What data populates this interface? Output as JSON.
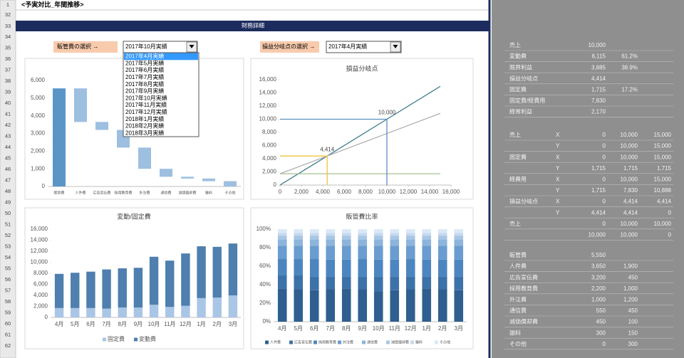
{
  "sheet": {
    "row_headers": [
      1,
      32,
      33,
      34,
      35,
      36,
      37,
      38,
      39,
      40,
      41,
      42,
      43,
      44,
      45,
      46,
      47,
      48,
      49,
      50,
      51,
      52,
      53,
      54,
      55,
      56,
      57,
      58,
      59,
      60,
      61,
      62
    ],
    "title_cell": "<予実対比_年間推移>",
    "banner": "財務詳細"
  },
  "controls": [
    {
      "label": "販管費の選択 →",
      "selected": "2017年10月実績",
      "options": [
        "2017年4月実績",
        "2017年5月実績",
        "2017年6月実績",
        "2017年7月実績",
        "2017年8月実績",
        "2017年9月実績",
        "2017年10月実績",
        "2017年11月実績",
        "2017年12月実績",
        "2018年1月実績",
        "2018年2月実績",
        "2018年3月実績"
      ]
    },
    {
      "label": "損益分岐点の選択 →",
      "selected": "2017年4月実績"
    }
  ],
  "side_table": {
    "blocks": [
      [
        [
          "売上",
          null,
          "10,000",
          null,
          null
        ],
        [
          "変動費",
          null,
          "6,115",
          "61.2%",
          null
        ],
        [
          "限界利益",
          null,
          "3,885",
          "38.9%",
          null
        ],
        [
          "損益分岐点",
          null,
          "4,414",
          null,
          null
        ],
        [
          "固定費",
          null,
          "1,715",
          "17.2%",
          null
        ],
        [
          "固定費/経費用",
          null,
          "7,830",
          null,
          null
        ],
        [
          "経常利益",
          null,
          "2,170",
          null,
          null
        ]
      ],
      [
        [
          "売上",
          "X",
          "0",
          "10,000",
          "15,000"
        ],
        [
          null,
          "Y",
          "0",
          "10,000",
          "15,000"
        ],
        [
          "固定費",
          "X",
          "0",
          "10,000",
          "15,000"
        ],
        [
          null,
          "Y",
          "1,715",
          "1,715",
          "1,715"
        ],
        [
          "経費用",
          "X",
          "0",
          "10,000",
          "15,000"
        ],
        [
          null,
          "Y",
          "1,715",
          "7,830",
          "10,888"
        ],
        [
          "損益分岐点",
          "X",
          "0",
          "4,414",
          "4,414"
        ],
        [
          null,
          "Y",
          "4,414",
          "4,414",
          "0"
        ],
        [
          "売上",
          null,
          "0",
          "10,000",
          "10,000"
        ],
        [
          null,
          null,
          "10,000",
          "10,000",
          "0"
        ]
      ],
      [
        [
          "販管費",
          null,
          "5,550",
          null,
          null
        ],
        [
          "人件費",
          null,
          "3,650",
          "1,900",
          null
        ],
        [
          "広告宣伝費",
          null,
          "3,200",
          "450",
          null
        ],
        [
          "採用教育費",
          null,
          "2,200",
          "1,000",
          null
        ],
        [
          "外注費",
          null,
          "1,000",
          "1,200",
          null
        ],
        [
          "通信費",
          null,
          "550",
          "450",
          null
        ],
        [
          "減価償却費",
          null,
          "450",
          "100",
          null
        ],
        [
          "雑料",
          null,
          "300",
          "150",
          null
        ],
        [
          "その他",
          null,
          "0",
          "300",
          null
        ]
      ]
    ]
  },
  "chart_data": [
    {
      "type": "waterfall",
      "categories": [
        "販管費",
        "人件費",
        "広告宣伝費",
        "採用教育費",
        "外注費",
        "通信費",
        "減価償却費",
        "雑料",
        "その他"
      ],
      "values": [
        5550,
        1900,
        450,
        1000,
        1200,
        450,
        100,
        150,
        300
      ],
      "total_color": "#5b95c8",
      "color": "#9dbfe0",
      "ylim": [
        0,
        6000
      ],
      "yticks": [
        0,
        {
          "value": 1000,
          "label": "1,000"
        },
        {
          "value": 2000,
          "label": "2,000"
        },
        {
          "value": 3000,
          "label": "3,000"
        },
        {
          "value": 4000,
          "label": "4,000"
        },
        {
          "value": 5000,
          "label": "5,000"
        },
        {
          "value": 6000,
          "label": "6,000"
        }
      ],
      "grid": false
    },
    {
      "type": "line",
      "title": "損益分岐点",
      "xlim": [
        0,
        16000
      ],
      "xticks": [
        0,
        {
          "value": 2000,
          "label": "2,000"
        },
        {
          "value": 4000,
          "label": "4,000"
        },
        {
          "value": 6000,
          "label": "6,000"
        },
        {
          "value": 8000,
          "label": "8,000"
        },
        {
          "value": 10000,
          "label": "10,000"
        },
        {
          "value": 12000,
          "label": "12,000"
        },
        {
          "value": 14000,
          "label": "14,000"
        },
        {
          "value": 16000,
          "label": "16,000"
        }
      ],
      "ylim": [
        0,
        16000
      ],
      "yticks": [
        0,
        {
          "value": 2000,
          "label": "2,000"
        },
        {
          "value": 4000,
          "label": "4,000"
        },
        {
          "value": 6000,
          "label": "6,000"
        },
        {
          "value": 8000,
          "label": "8,000"
        },
        {
          "value": 10000,
          "label": "10,000"
        },
        {
          "value": 12000,
          "label": "12,000"
        },
        {
          "value": 14000,
          "label": "14,000"
        },
        {
          "value": 16000,
          "label": "16,000"
        }
      ],
      "grid": false,
      "series": [
        {
          "color": "#3d7a8c",
          "x": [
            0,
            10000,
            15000
          ],
          "values": [
            0,
            10000,
            15000
          ]
        },
        {
          "color": "#a5c090",
          "x": [
            0,
            10000,
            15000
          ],
          "values": [
            1715,
            1715,
            1715
          ]
        },
        {
          "color": "#b0b0b0",
          "x": [
            0,
            10000,
            15000
          ],
          "values": [
            1715,
            7830,
            10888
          ]
        },
        {
          "color": "#f0c43c",
          "x": [
            0,
            4414,
            4414
          ],
          "values": [
            4414,
            4414,
            0
          ],
          "value_labels": [
            null,
            "4,414",
            null
          ]
        },
        {
          "color": "#5a8fbf",
          "x": [
            0,
            10000,
            10000
          ],
          "values": [
            10000,
            10000,
            0
          ],
          "value_labels": [
            null,
            "10,000",
            null
          ]
        }
      ]
    },
    {
      "type": "stacked_bar",
      "title": "変動/固定費",
      "categories": [
        "4月",
        "5月",
        "6月",
        "7月",
        "8月",
        "9月",
        "10月",
        "11月",
        "12月",
        "1月",
        "2月",
        "3月"
      ],
      "ylim": [
        0,
        16000
      ],
      "yticks": [
        0,
        {
          "value": 2000,
          "label": "2,000"
        },
        {
          "value": 4000,
          "label": "4,000"
        },
        {
          "value": 6000,
          "label": "6,000"
        },
        {
          "value": 8000,
          "label": "8,000"
        },
        {
          "value": 10000,
          "label": "10,000"
        },
        {
          "value": 12000,
          "label": "12,000"
        },
        {
          "value": 14000,
          "label": "14,000"
        },
        {
          "value": 16000,
          "label": "16,000"
        }
      ],
      "grid": false,
      "series": [
        {
          "name": "固定費",
          "color": "#a9c6e6",
          "values": [
            1700,
            1700,
            1700,
            1600,
            1800,
            1800,
            2300,
            1900,
            2100,
            3500,
            3600,
            4000
          ]
        },
        {
          "name": "変動費",
          "color": "#4f7fae",
          "values": [
            6200,
            6400,
            6600,
            7100,
            7100,
            7200,
            8700,
            8400,
            9500,
            9400,
            9200,
            9400
          ]
        }
      ]
    },
    {
      "type": "stacked_bar",
      "title": "販管費比率",
      "categories": [
        "4月",
        "5月",
        "6月",
        "7月",
        "8月",
        "9月",
        "10月",
        "11月",
        "12月",
        "1月",
        "2月",
        "3月"
      ],
      "ylim": [
        0,
        100
      ],
      "yticks": [
        {
          "value": 0,
          "label": "0%"
        },
        {
          "value": 20,
          "label": "20%"
        },
        {
          "value": 40,
          "label": "40%"
        },
        {
          "value": 60,
          "label": "60%"
        },
        {
          "value": 80,
          "label": "80%"
        },
        {
          "value": 100,
          "label": "100%"
        }
      ],
      "grid": false,
      "series": [
        {
          "name": "人件費",
          "color": "#2f5f8f",
          "values": [
            36,
            35,
            34,
            35,
            36,
            35,
            33,
            34,
            35,
            36,
            35,
            34
          ]
        },
        {
          "name": "広告宣伝費",
          "color": "#3d72a8",
          "values": [
            14,
            15,
            15,
            14,
            13,
            14,
            16,
            15,
            14,
            13,
            14,
            15
          ]
        },
        {
          "name": "採用教育費",
          "color": "#4d86bf",
          "values": [
            18,
            18,
            19,
            18,
            18,
            19,
            18,
            18,
            19,
            18,
            18,
            18
          ]
        },
        {
          "name": "外注費",
          "color": "#6a9ccf",
          "values": [
            14,
            14,
            14,
            15,
            15,
            14,
            15,
            15,
            14,
            15,
            15,
            15
          ]
        },
        {
          "name": "通信費",
          "color": "#8db4dc",
          "values": [
            7,
            7,
            7,
            7,
            7,
            7,
            7,
            7,
            7,
            7,
            7,
            7
          ]
        },
        {
          "name": "減価償却費",
          "color": "#a9c6e6",
          "values": [
            4,
            4,
            4,
            4,
            4,
            4,
            4,
            4,
            4,
            4,
            4,
            4
          ]
        },
        {
          "name": "雑料",
          "color": "#c5d9ef",
          "values": [
            3,
            3,
            3,
            3,
            3,
            3,
            3,
            3,
            3,
            3,
            3,
            3
          ]
        },
        {
          "name": "その他",
          "color": "#dde8f5",
          "values": [
            4,
            4,
            4,
            4,
            4,
            4,
            4,
            4,
            4,
            4,
            4,
            4
          ]
        }
      ]
    }
  ]
}
